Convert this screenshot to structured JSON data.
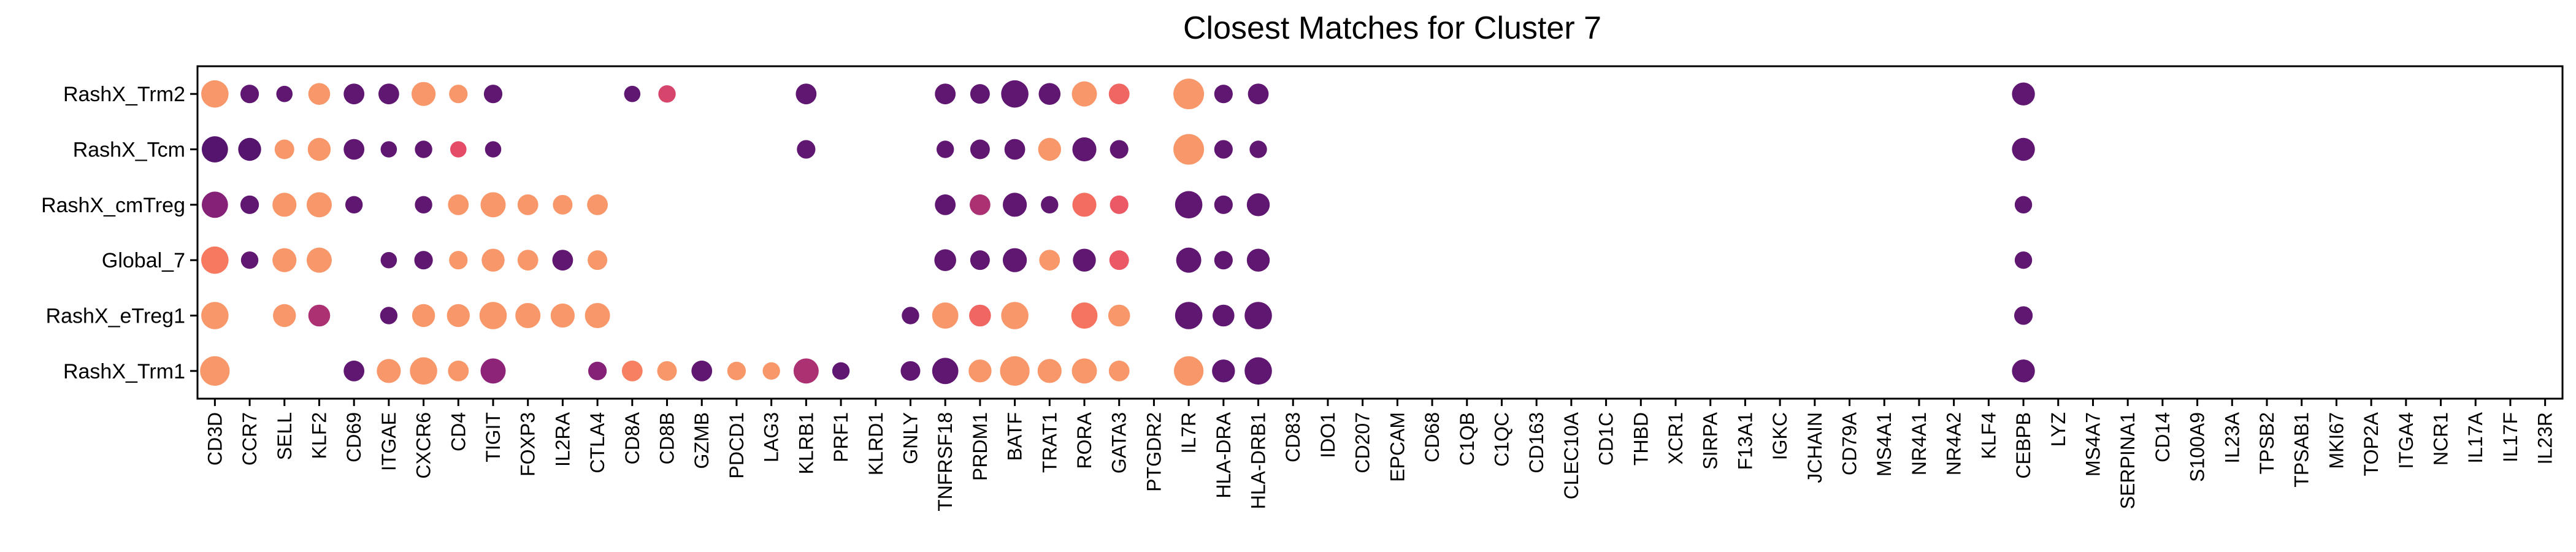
{
  "chart_data": {
    "type": "scatter",
    "subtype": "dot-plot",
    "title": "Closest Matches for Cluster 7",
    "xlabel": "",
    "ylabel": "",
    "grid": false,
    "legend": "none",
    "x": [
      "CD3D",
      "CCR7",
      "SELL",
      "KLF2",
      "CD69",
      "ITGAE",
      "CXCR6",
      "CD4",
      "TIGIT",
      "FOXP3",
      "IL2RA",
      "CTLA4",
      "CD8A",
      "CD8B",
      "GZMB",
      "PDCD1",
      "LAG3",
      "KLRB1",
      "PRF1",
      "KLRD1",
      "GNLY",
      "TNFRSF18",
      "PRDM1",
      "BATF",
      "TRAT1",
      "RORA",
      "GATA3",
      "PTGDR2",
      "IL7R",
      "HLA-DRA",
      "HLA-DRB1",
      "CD83",
      "IDO1",
      "CD207",
      "EPCAM",
      "CD68",
      "C1QB",
      "C1QC",
      "CD163",
      "CLEC10A",
      "CD1C",
      "THBD",
      "XCR1",
      "SIRPA",
      "F13A1",
      "IGKC",
      "JCHAIN",
      "CD79A",
      "MS4A1",
      "NR4A1",
      "NR4A2",
      "KLF4",
      "CEBPB",
      "LYZ",
      "MS4A7",
      "SERPINA1",
      "CD14",
      "S100A9",
      "IL23A",
      "TPSB2",
      "TPSAB1",
      "MKI67",
      "TOP2A",
      "ITGA4",
      "NCR1",
      "IL17A",
      "IL17F",
      "IL23R"
    ],
    "y": [
      "RashX_Trm2",
      "RashX_Tcm",
      "RashX_cmTreg",
      "Global_7",
      "RashX_eTreg1",
      "RashX_Trm1"
    ],
    "size_unit": "relative dot size (0-1)",
    "color_unit": "relative expression (0 = dark purple, 1 = orange)",
    "series": [
      {
        "y": "RashX_Trm2",
        "points": [
          {
            "x": "CD3D",
            "size": 0.85,
            "color": 0.95
          },
          {
            "x": "CCR7",
            "size": 0.45,
            "color": 0.1
          },
          {
            "x": "SELL",
            "size": 0.35,
            "color": 0.1
          },
          {
            "x": "KLF2",
            "size": 0.6,
            "color": 0.95
          },
          {
            "x": "CD69",
            "size": 0.55,
            "color": 0.1
          },
          {
            "x": "ITGAE",
            "size": 0.55,
            "color": 0.1
          },
          {
            "x": "CXCR6",
            "size": 0.7,
            "color": 0.95
          },
          {
            "x": "CD4",
            "size": 0.45,
            "color": 0.95
          },
          {
            "x": "TIGIT",
            "size": 0.45,
            "color": 0.1
          },
          {
            "x": "CD8A",
            "size": 0.35,
            "color": 0.1
          },
          {
            "x": "CD8B",
            "size": 0.4,
            "color": 0.6
          },
          {
            "x": "KLRB1",
            "size": 0.55,
            "color": 0.1
          },
          {
            "x": "TNFRSF18",
            "size": 0.55,
            "color": 0.1
          },
          {
            "x": "PRDM1",
            "size": 0.5,
            "color": 0.1
          },
          {
            "x": "BATF",
            "size": 0.85,
            "color": 0.1
          },
          {
            "x": "TRAT1",
            "size": 0.6,
            "color": 0.1
          },
          {
            "x": "RORA",
            "size": 0.75,
            "color": 0.95
          },
          {
            "x": "GATA3",
            "size": 0.55,
            "color": 0.75
          },
          {
            "x": "IL7R",
            "size": 1.0,
            "color": 0.95
          },
          {
            "x": "HLA-DRA",
            "size": 0.45,
            "color": 0.1
          },
          {
            "x": "HLA-DRB1",
            "size": 0.55,
            "color": 0.1
          },
          {
            "x": "CEBPB",
            "size": 0.65,
            "color": 0.1
          }
        ]
      },
      {
        "y": "RashX_Tcm",
        "points": [
          {
            "x": "CD3D",
            "size": 0.8,
            "color": 0.05
          },
          {
            "x": "CCR7",
            "size": 0.65,
            "color": 0.05
          },
          {
            "x": "SELL",
            "size": 0.5,
            "color": 0.95
          },
          {
            "x": "KLF2",
            "size": 0.65,
            "color": 0.95
          },
          {
            "x": "CD69",
            "size": 0.55,
            "color": 0.1
          },
          {
            "x": "ITGAE",
            "size": 0.35,
            "color": 0.1
          },
          {
            "x": "CXCR6",
            "size": 0.4,
            "color": 0.1
          },
          {
            "x": "CD4",
            "size": 0.35,
            "color": 0.65
          },
          {
            "x": "TIGIT",
            "size": 0.35,
            "color": 0.1
          },
          {
            "x": "KLRB1",
            "size": 0.45,
            "color": 0.1
          },
          {
            "x": "TNFRSF18",
            "size": 0.4,
            "color": 0.1
          },
          {
            "x": "PRDM1",
            "size": 0.5,
            "color": 0.1
          },
          {
            "x": "BATF",
            "size": 0.55,
            "color": 0.1
          },
          {
            "x": "TRAT1",
            "size": 0.65,
            "color": 0.95
          },
          {
            "x": "RORA",
            "size": 0.7,
            "color": 0.1
          },
          {
            "x": "GATA3",
            "size": 0.45,
            "color": 0.1
          },
          {
            "x": "IL7R",
            "size": 1.0,
            "color": 0.95
          },
          {
            "x": "HLA-DRA",
            "size": 0.45,
            "color": 0.1
          },
          {
            "x": "HLA-DRB1",
            "size": 0.4,
            "color": 0.1
          },
          {
            "x": "CEBPB",
            "size": 0.65,
            "color": 0.1
          }
        ]
      },
      {
        "y": "RashX_cmTreg",
        "points": [
          {
            "x": "CD3D",
            "size": 0.8,
            "color": 0.3
          },
          {
            "x": "CCR7",
            "size": 0.45,
            "color": 0.1
          },
          {
            "x": "SELL",
            "size": 0.7,
            "color": 0.95
          },
          {
            "x": "KLF2",
            "size": 0.75,
            "color": 0.95
          },
          {
            "x": "CD69",
            "size": 0.4,
            "color": 0.1
          },
          {
            "x": "CXCR6",
            "size": 0.4,
            "color": 0.1
          },
          {
            "x": "CD4",
            "size": 0.55,
            "color": 0.95
          },
          {
            "x": "TIGIT",
            "size": 0.75,
            "color": 0.95
          },
          {
            "x": "FOXP3",
            "size": 0.55,
            "color": 0.95
          },
          {
            "x": "IL2RA",
            "size": 0.5,
            "color": 0.95
          },
          {
            "x": "CTLA4",
            "size": 0.55,
            "color": 0.95
          },
          {
            "x": "TNFRSF18",
            "size": 0.55,
            "color": 0.1
          },
          {
            "x": "PRDM1",
            "size": 0.55,
            "color": 0.45
          },
          {
            "x": "BATF",
            "size": 0.7,
            "color": 0.1
          },
          {
            "x": "TRAT1",
            "size": 0.4,
            "color": 0.1
          },
          {
            "x": "RORA",
            "size": 0.7,
            "color": 0.78
          },
          {
            "x": "GATA3",
            "size": 0.45,
            "color": 0.7
          },
          {
            "x": "IL7R",
            "size": 0.85,
            "color": 0.1
          },
          {
            "x": "HLA-DRA",
            "size": 0.45,
            "color": 0.1
          },
          {
            "x": "HLA-DRB1",
            "size": 0.65,
            "color": 0.1
          },
          {
            "x": "CEBPB",
            "size": 0.4,
            "color": 0.1
          }
        ]
      },
      {
        "y": "Global_7",
        "points": [
          {
            "x": "CD3D",
            "size": 0.85,
            "color": 0.82
          },
          {
            "x": "CCR7",
            "size": 0.4,
            "color": 0.1
          },
          {
            "x": "SELL",
            "size": 0.7,
            "color": 0.95
          },
          {
            "x": "KLF2",
            "size": 0.75,
            "color": 0.95
          },
          {
            "x": "ITGAE",
            "size": 0.35,
            "color": 0.1
          },
          {
            "x": "CXCR6",
            "size": 0.45,
            "color": 0.1
          },
          {
            "x": "CD4",
            "size": 0.45,
            "color": 0.95
          },
          {
            "x": "TIGIT",
            "size": 0.65,
            "color": 0.95
          },
          {
            "x": "FOXP3",
            "size": 0.55,
            "color": 0.95
          },
          {
            "x": "IL2RA",
            "size": 0.55,
            "color": 0.1
          },
          {
            "x": "CTLA4",
            "size": 0.5,
            "color": 0.95
          },
          {
            "x": "TNFRSF18",
            "size": 0.6,
            "color": 0.1
          },
          {
            "x": "PRDM1",
            "size": 0.5,
            "color": 0.1
          },
          {
            "x": "BATF",
            "size": 0.7,
            "color": 0.1
          },
          {
            "x": "TRAT1",
            "size": 0.55,
            "color": 0.95
          },
          {
            "x": "RORA",
            "size": 0.65,
            "color": 0.1
          },
          {
            "x": "GATA3",
            "size": 0.5,
            "color": 0.7
          },
          {
            "x": "IL7R",
            "size": 0.75,
            "color": 0.1
          },
          {
            "x": "HLA-DRA",
            "size": 0.45,
            "color": 0.1
          },
          {
            "x": "HLA-DRB1",
            "size": 0.65,
            "color": 0.1
          },
          {
            "x": "CEBPB",
            "size": 0.4,
            "color": 0.1
          }
        ]
      },
      {
        "y": "RashX_eTreg1",
        "points": [
          {
            "x": "CD3D",
            "size": 0.85,
            "color": 0.95
          },
          {
            "x": "SELL",
            "size": 0.65,
            "color": 0.95
          },
          {
            "x": "KLF2",
            "size": 0.6,
            "color": 0.45
          },
          {
            "x": "ITGAE",
            "size": 0.4,
            "color": 0.1
          },
          {
            "x": "CXCR6",
            "size": 0.65,
            "color": 0.95
          },
          {
            "x": "CD4",
            "size": 0.65,
            "color": 0.95
          },
          {
            "x": "TIGIT",
            "size": 0.85,
            "color": 0.95
          },
          {
            "x": "FOXP3",
            "size": 0.75,
            "color": 0.95
          },
          {
            "x": "IL2RA",
            "size": 0.7,
            "color": 0.95
          },
          {
            "x": "CTLA4",
            "size": 0.75,
            "color": 0.95
          },
          {
            "x": "GNLY",
            "size": 0.4,
            "color": 0.1
          },
          {
            "x": "TNFRSF18",
            "size": 0.8,
            "color": 0.95
          },
          {
            "x": "PRDM1",
            "size": 0.6,
            "color": 0.75
          },
          {
            "x": "BATF",
            "size": 0.85,
            "color": 0.95
          },
          {
            "x": "RORA",
            "size": 0.8,
            "color": 0.8
          },
          {
            "x": "GATA3",
            "size": 0.6,
            "color": 0.95
          },
          {
            "x": "IL7R",
            "size": 0.85,
            "color": 0.1
          },
          {
            "x": "HLA-DRA",
            "size": 0.6,
            "color": 0.1
          },
          {
            "x": "HLA-DRB1",
            "size": 0.85,
            "color": 0.1
          },
          {
            "x": "CEBPB",
            "size": 0.45,
            "color": 0.1
          }
        ]
      },
      {
        "y": "RashX_Trm1",
        "points": [
          {
            "x": "CD3D",
            "size": 0.95,
            "color": 0.95
          },
          {
            "x": "CD69",
            "size": 0.55,
            "color": 0.1
          },
          {
            "x": "ITGAE",
            "size": 0.7,
            "color": 0.95
          },
          {
            "x": "CXCR6",
            "size": 0.85,
            "color": 0.95
          },
          {
            "x": "CD4",
            "size": 0.55,
            "color": 0.95
          },
          {
            "x": "TIGIT",
            "size": 0.75,
            "color": 0.35
          },
          {
            "x": "CTLA4",
            "size": 0.45,
            "color": 0.3
          },
          {
            "x": "CD8A",
            "size": 0.55,
            "color": 0.85
          },
          {
            "x": "CD8B",
            "size": 0.5,
            "color": 0.95
          },
          {
            "x": "GZMB",
            "size": 0.55,
            "color": 0.1
          },
          {
            "x": "PDCD1",
            "size": 0.45,
            "color": 0.95
          },
          {
            "x": "LAG3",
            "size": 0.4,
            "color": 0.95
          },
          {
            "x": "KLRB1",
            "size": 0.75,
            "color": 0.45
          },
          {
            "x": "PRF1",
            "size": 0.4,
            "color": 0.1
          },
          {
            "x": "GNLY",
            "size": 0.5,
            "color": 0.1
          },
          {
            "x": "TNFRSF18",
            "size": 0.8,
            "color": 0.1
          },
          {
            "x": "PRDM1",
            "size": 0.65,
            "color": 0.95
          },
          {
            "x": "BATF",
            "size": 0.95,
            "color": 0.95
          },
          {
            "x": "TRAT1",
            "size": 0.7,
            "color": 0.95
          },
          {
            "x": "RORA",
            "size": 0.75,
            "color": 0.95
          },
          {
            "x": "GATA3",
            "size": 0.55,
            "color": 0.95
          },
          {
            "x": "IL7R",
            "size": 0.95,
            "color": 0.95
          },
          {
            "x": "HLA-DRA",
            "size": 0.65,
            "color": 0.1
          },
          {
            "x": "HLA-DRB1",
            "size": 0.85,
            "color": 0.1
          },
          {
            "x": "CEBPB",
            "size": 0.65,
            "color": 0.1
          }
        ]
      }
    ],
    "colors": {
      "low": "#5b1a78",
      "high": "#f9a36e",
      "mid": "#e44c68",
      "axis": "#000000"
    }
  }
}
